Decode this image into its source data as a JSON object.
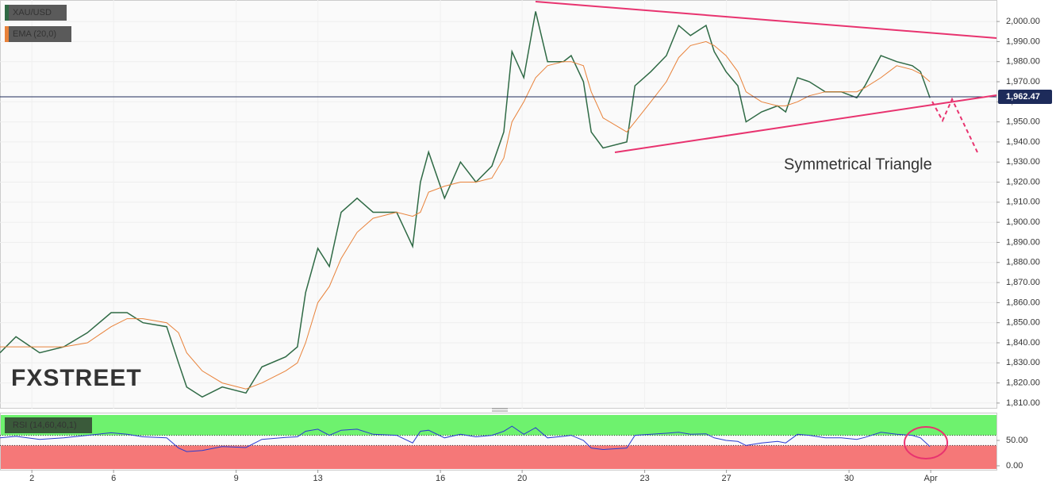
{
  "chart_data": [
    {
      "type": "line",
      "watermark": "FXSTREET",
      "annotation": "Symmetrical Triangle",
      "x": [
        -0.78,
        -0.39,
        0.19,
        0.78,
        1.36,
        1.94,
        2.33,
        2.72,
        3.3,
        3.59,
        3.79,
        4.17,
        4.66,
        5.24,
        5.63,
        6.21,
        6.5,
        6.7,
        7,
        7.28,
        7.57,
        7.96,
        8.35,
        8.93,
        9.32,
        9.51,
        9.71,
        10.1,
        10.49,
        10.87,
        11.26,
        11.55,
        11.75,
        12.04,
        12.33,
        12.62,
        13.01,
        13.2,
        13.5,
        13.69,
        13.98,
        14.56,
        14.76,
        15.15,
        15.53,
        15.83,
        16.12,
        16.5,
        16.7,
        16.99,
        17.28,
        17.48,
        17.86,
        18.25,
        18.45,
        18.74,
        19.03,
        19.42,
        19.81,
        20.19,
        20.39,
        20.78,
        21.17,
        21.55,
        21.75,
        21.98
      ],
      "series": [
        {
          "name": "XAU/USD",
          "color": "#2f6a45",
          "values": [
            1835,
            1843,
            1835,
            1838,
            1845,
            1855,
            1855,
            1850,
            1848,
            1830,
            1818,
            1813,
            1818,
            1815,
            1828,
            1833,
            1838,
            1865,
            1887,
            1878,
            1905,
            1912,
            1905,
            1905,
            1888,
            1920,
            1935,
            1912,
            1930,
            1920,
            1928,
            1945,
            1985,
            1972,
            2005,
            1980,
            1980,
            1983,
            1970,
            1945,
            1937,
            1940,
            1968,
            1975,
            1983,
            1998,
            1993,
            1998,
            1985,
            1975,
            1968,
            1950,
            1955,
            1958,
            1955,
            1972,
            1970,
            1965,
            1965,
            1962,
            1968,
            1983,
            1980,
            1978,
            1975,
            1962
          ]
        },
        {
          "name": "EMA (20,0)",
          "color": "#e8823a",
          "values": [
            1838,
            1838,
            1838,
            1838,
            1840,
            1848,
            1852,
            1852,
            1850,
            1845,
            1835,
            1826,
            1820,
            1817,
            1820,
            1826,
            1830,
            1840,
            1860,
            1868,
            1882,
            1895,
            1902,
            1905,
            1903,
            1905,
            1915,
            1918,
            1920,
            1920,
            1922,
            1932,
            1950,
            1960,
            1972,
            1978,
            1980,
            1980,
            1978,
            1965,
            1952,
            1945,
            1950,
            1960,
            1970,
            1982,
            1988,
            1990,
            1988,
            1983,
            1975,
            1965,
            1960,
            1958,
            1958,
            1960,
            1963,
            1965,
            1965,
            1965,
            1967,
            1972,
            1978,
            1976,
            1974,
            1970
          ]
        }
      ],
      "last_price": {
        "value": 1962.47,
        "label": "1,962.47"
      },
      "xlim": [
        -0.78,
        23.61
      ],
      "xticks": [
        {
          "value": 0,
          "label": "2"
        },
        {
          "value": 2,
          "label": "6"
        },
        {
          "value": 5,
          "label": "9"
        },
        {
          "value": 7,
          "label": "13"
        },
        {
          "value": 10,
          "label": "16"
        },
        {
          "value": 12,
          "label": "20"
        },
        {
          "value": 15,
          "label": "23"
        },
        {
          "value": 17,
          "label": "27"
        },
        {
          "value": 20,
          "label": "30"
        },
        {
          "value": 22,
          "label": "Apr"
        }
      ],
      "ylim": [
        1807.2,
        2010.7
      ],
      "yticks": [
        {
          "value": 1810,
          "label": "1,810.00"
        },
        {
          "value": 1820,
          "label": "1,820.00"
        },
        {
          "value": 1830,
          "label": "1,830.00"
        },
        {
          "value": 1840,
          "label": "1,840.00"
        },
        {
          "value": 1850,
          "label": "1,850.00"
        },
        {
          "value": 1860,
          "label": "1,860.00"
        },
        {
          "value": 1870,
          "label": "1,870.00"
        },
        {
          "value": 1880,
          "label": "1,880.00"
        },
        {
          "value": 1890,
          "label": "1,890.00"
        },
        {
          "value": 1900,
          "label": "1,900.00"
        },
        {
          "value": 1910,
          "label": "1,910.00"
        },
        {
          "value": 1920,
          "label": "1,920.00"
        },
        {
          "value": 1930,
          "label": "1,930.00"
        },
        {
          "value": 1940,
          "label": "1,940.00"
        },
        {
          "value": 1950,
          "label": "1,950.00"
        },
        {
          "value": 1960,
          "label": "1,960.00"
        },
        {
          "value": 1970,
          "label": "1,970.00"
        },
        {
          "value": 1980,
          "label": "1,980.00"
        },
        {
          "value": 1990,
          "label": "1,990.00"
        },
        {
          "value": 2000,
          "label": "2,000.00"
        }
      ],
      "grid": true
    },
    {
      "type": "line",
      "x": [
        -0.78,
        -0.39,
        0.19,
        0.78,
        1.36,
        1.94,
        2.33,
        2.72,
        3.3,
        3.59,
        3.79,
        4.17,
        4.66,
        5.24,
        5.63,
        6.21,
        6.5,
        6.7,
        7,
        7.28,
        7.57,
        7.96,
        8.35,
        8.93,
        9.32,
        9.51,
        9.71,
        10.1,
        10.49,
        10.87,
        11.26,
        11.55,
        11.75,
        12.04,
        12.33,
        12.62,
        13.01,
        13.2,
        13.5,
        13.69,
        13.98,
        14.56,
        14.76,
        15.15,
        15.53,
        15.83,
        16.12,
        16.5,
        16.7,
        16.99,
        17.28,
        17.48,
        17.86,
        18.25,
        18.45,
        18.74,
        19.03,
        19.42,
        19.81,
        20.19,
        20.39,
        20.78,
        21.17,
        21.55,
        21.75,
        21.98
      ],
      "series": [
        {
          "name": "RSI (14,60,40,1)",
          "color": "#2a3bd1",
          "values": [
            55,
            58,
            52,
            55,
            60,
            65,
            62,
            57,
            55,
            35,
            28,
            30,
            38,
            36,
            52,
            56,
            57,
            68,
            72,
            60,
            70,
            72,
            62,
            60,
            45,
            68,
            70,
            55,
            62,
            57,
            60,
            68,
            78,
            62,
            75,
            55,
            58,
            60,
            50,
            35,
            32,
            35,
            60,
            62,
            64,
            66,
            62,
            63,
            55,
            50,
            48,
            40,
            45,
            48,
            45,
            62,
            60,
            55,
            55,
            52,
            56,
            66,
            62,
            60,
            55,
            38
          ]
        }
      ],
      "upper_band": 60,
      "lower_band": 40,
      "band_top": 100,
      "upper_color": "#6ef26e",
      "lower_color": "#f57878",
      "xlim": [
        -0.78,
        23.61
      ],
      "ylim": [
        -7.8,
        104.7
      ],
      "yticks": [
        {
          "value": 50,
          "label": "50.00"
        },
        {
          "value": 0,
          "label": "0.00"
        }
      ],
      "grid": true
    }
  ]
}
